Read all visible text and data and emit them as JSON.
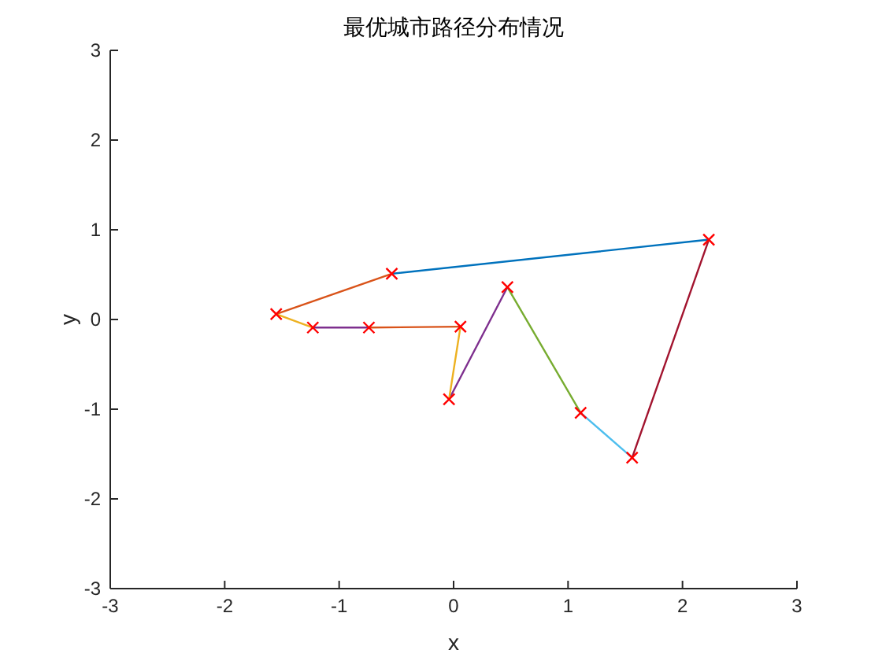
{
  "chart_data": {
    "type": "line",
    "title": "最优城市路径分布情况",
    "xlabel": "x",
    "ylabel": "y",
    "xlim": [
      -3,
      3
    ],
    "ylim": [
      -3,
      3
    ],
    "xticks": [
      -3,
      -2,
      -1,
      0,
      1,
      2,
      3
    ],
    "yticks": [
      -3,
      -2,
      -1,
      0,
      1,
      2,
      3
    ],
    "marker": "none",
    "line_style": "solid",
    "series": [
      {
        "color": "#0072bd",
        "x": [
          -0.54,
          2.23
        ],
        "values": [
          0.51,
          0.89
        ]
      },
      {
        "color": "#a2142f",
        "x": [
          2.23,
          1.56
        ],
        "values": [
          0.89,
          -1.54
        ]
      },
      {
        "color": "#4dbeee",
        "x": [
          1.56,
          1.11
        ],
        "values": [
          -1.54,
          -1.04
        ]
      },
      {
        "color": "#77ac30",
        "x": [
          1.11,
          0.47
        ],
        "values": [
          -1.04,
          0.36
        ]
      },
      {
        "color": "#7e2f8e",
        "x": [
          0.47,
          -0.04
        ],
        "values": [
          0.36,
          -0.89
        ]
      },
      {
        "color": "#edb120",
        "x": [
          -0.04,
          0.06
        ],
        "values": [
          -0.89,
          -0.08
        ]
      },
      {
        "color": "#d95319",
        "x": [
          0.06,
          -0.74
        ],
        "values": [
          -0.08,
          -0.09
        ]
      },
      {
        "color": "#7e2f8e",
        "x": [
          -0.74,
          -1.23
        ],
        "values": [
          -0.09,
          -0.09
        ]
      },
      {
        "color": "#edb120",
        "x": [
          -1.23,
          -1.55
        ],
        "values": [
          -0.09,
          0.06
        ]
      },
      {
        "color": "#d95319",
        "x": [
          -1.55,
          -0.54
        ],
        "values": [
          0.06,
          0.51
        ]
      },
      {
        "type": "scatter",
        "marker": "cross",
        "color": "#ff0000",
        "x": [
          -0.54,
          2.23,
          1.56,
          1.11,
          0.47,
          -0.04,
          0.06,
          -0.74,
          -1.23,
          -1.55
        ],
        "values": [
          0.51,
          0.89,
          -1.54,
          -1.04,
          0.36,
          -0.89,
          -0.08,
          -0.09,
          -0.09,
          0.06
        ]
      }
    ]
  }
}
